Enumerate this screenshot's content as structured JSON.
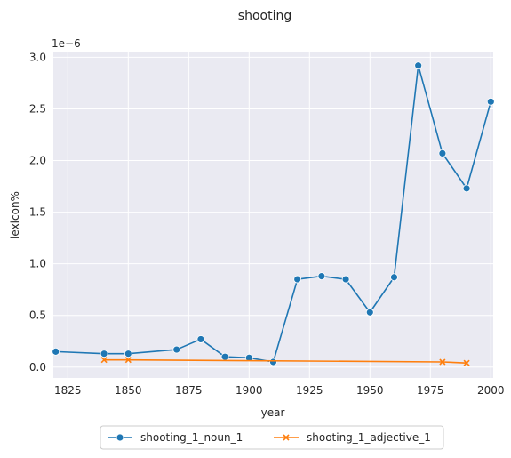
{
  "chart_data": {
    "type": "line",
    "title": "shooting",
    "xlabel": "year",
    "ylabel": "lexicon%",
    "y_offset_label": "1e−6",
    "xlim": [
      1819,
      2001
    ],
    "ylim": [
      -1.05e-07,
      3.055e-06
    ],
    "x_ticks": [
      1825,
      1850,
      1875,
      1900,
      1925,
      1950,
      1975,
      2000
    ],
    "x_tick_labels": [
      "1825",
      "1850",
      "1875",
      "1900",
      "1925",
      "1950",
      "1975",
      "2000"
    ],
    "y_ticks": [
      0,
      5e-07,
      1e-06,
      1.5e-06,
      2e-06,
      2.5e-06,
      3e-06
    ],
    "y_tick_labels": [
      "0.0",
      "0.5",
      "1.0",
      "1.5",
      "2.0",
      "2.5",
      "3.0"
    ],
    "grid": true,
    "legend_position": "bottom-center",
    "series": [
      {
        "name": "shooting_1_noun_1",
        "color": "#1f77b4",
        "marker": "circle",
        "x": [
          1820,
          1840,
          1850,
          1870,
          1880,
          1890,
          1900,
          1910,
          1920,
          1930,
          1940,
          1950,
          1960,
          1970,
          1980,
          1990,
          2000
        ],
        "y": [
          1.5e-07,
          1.3e-07,
          1.3e-07,
          1.7e-07,
          2.7e-07,
          1e-07,
          9e-08,
          5e-08,
          8.5e-07,
          8.8e-07,
          8.5e-07,
          5.3e-07,
          8.7e-07,
          2.92e-06,
          2.07e-06,
          1.73e-06,
          2.57e-06
        ]
      },
      {
        "name": "shooting_1_adjective_1",
        "color": "#ff7f0e",
        "marker": "x",
        "x": [
          1840,
          1850,
          1980,
          1990
        ],
        "y": [
          7e-08,
          7e-08,
          5e-08,
          4e-08
        ]
      }
    ]
  }
}
